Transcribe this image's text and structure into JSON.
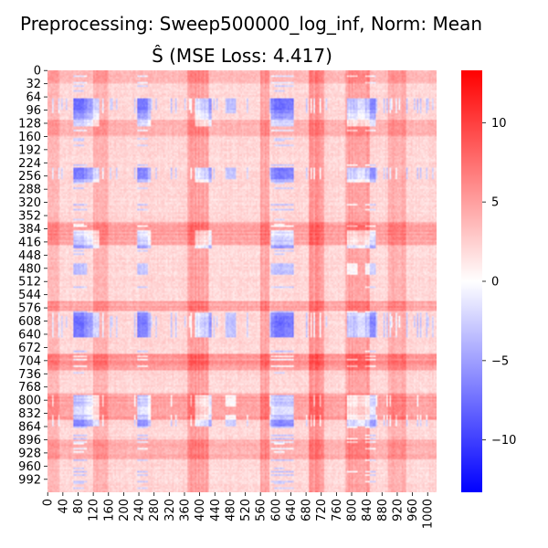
{
  "figure": {
    "title_line1": "Preprocessing: Sweep500000_log_inf, Norm: Mean",
    "title_line2": "Ŝ (MSE Loss: 4.417)"
  },
  "chart_data": {
    "type": "heatmap",
    "title": "Preprocessing: Sweep500000_log_inf, Norm: Mean — Ŝ (MSE Loss: 4.417)",
    "matrix_size": 1024,
    "y_ticks": [
      "0",
      "32",
      "64",
      "96",
      "128",
      "160",
      "192",
      "224",
      "256",
      "288",
      "320",
      "352",
      "384",
      "416",
      "448",
      "480",
      "512",
      "544",
      "576",
      "608",
      "640",
      "672",
      "704",
      "736",
      "768",
      "800",
      "832",
      "864",
      "896",
      "928",
      "960",
      "992"
    ],
    "x_ticks": [
      "0",
      "40",
      "80",
      "120",
      "160",
      "200",
      "240",
      "280",
      "320",
      "360",
      "400",
      "440",
      "480",
      "520",
      "560",
      "600",
      "640",
      "680",
      "720",
      "760",
      "800",
      "840",
      "880",
      "920",
      "960",
      "1000"
    ],
    "colorbar": {
      "min": -13.3,
      "max": 13.3,
      "ticks": [
        "10",
        "5",
        "0",
        "−5",
        "−10"
      ],
      "tick_values": [
        10,
        5,
        0,
        -5,
        -10
      ],
      "colormap": "bwr",
      "low_color": "#0000ff",
      "mid_color": "#ffffff",
      "high_color": "#ff0000"
    }
  }
}
